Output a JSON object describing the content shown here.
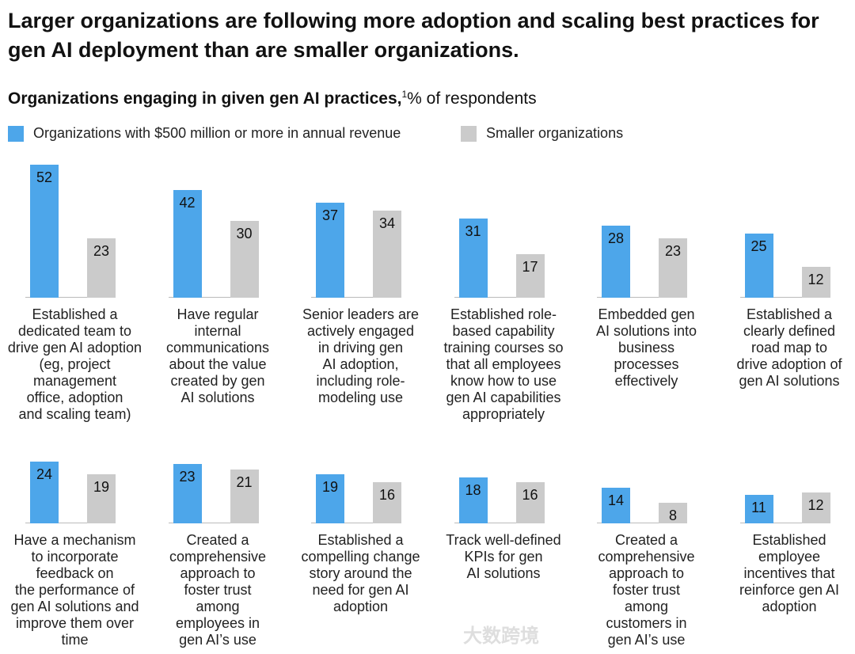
{
  "title": "Larger organizations are following more adoption and scaling best practices for gen AI deployment than are smaller organizations.",
  "subtitle": {
    "bold": "Organizations engaging in given gen AI practices,",
    "sup": "1",
    "rest": "% of respondents"
  },
  "legend": [
    {
      "label": "Organizations with $500 million or more in annual revenue",
      "color": "#4da6ea"
    },
    {
      "label": "Smaller organizations",
      "color": "#cbcbcb"
    }
  ],
  "watermark": "大数跨境",
  "chart_data": {
    "type": "bar",
    "title": "Organizations engaging in given gen AI practices, % of respondents",
    "series": [
      {
        "name": "Organizations with $500 million or more in annual revenue",
        "values": [
          52,
          42,
          37,
          31,
          28,
          25,
          24,
          23,
          19,
          18,
          14,
          11
        ]
      },
      {
        "name": "Smaller organizations",
        "values": [
          23,
          30,
          34,
          17,
          23,
          12,
          19,
          21,
          16,
          16,
          8,
          12
        ]
      }
    ],
    "categories": [
      "Established a\ndedicated team to\ndrive gen AI adoption\n(eg, project\nmanagement\noffice, adoption\nand scaling team)",
      "Have regular\ninternal\ncommunications\nabout the value\ncreated by gen\nAI solutions",
      "Senior leaders are\nactively engaged\nin driving gen\nAI adoption,\nincluding role-\nmodeling use",
      "Established role-\nbased capability\ntraining courses so\nthat all employees\nknow how to use\ngen AI capabilities\nappropriately",
      "Embedded gen\nAI solutions into\nbusiness\nprocesses\neffectively",
      "Established a\nclearly defined\nroad map to\ndrive adoption of\ngen AI solutions",
      "Have a mechanism\nto incorporate\nfeedback on\nthe performance of\ngen AI solutions and\nimprove them over\ntime",
      "Created a\ncomprehensive\napproach to\nfoster trust\namong\nemployees in\ngen AI’s use",
      "Established a\ncompelling change\nstory around the\nneed for gen AI\nadoption",
      "Track well-defined\nKPIs for gen\nAI solutions",
      "Created a\ncomprehensive\napproach to\nfoster trust\namong\ncustomers in\ngen AI’s use",
      "Established\nemployee\nincentives that\nreinforce gen AI\nadoption"
    ],
    "ylim": [
      0,
      55
    ],
    "grid": false,
    "legend_position": "top-left"
  }
}
